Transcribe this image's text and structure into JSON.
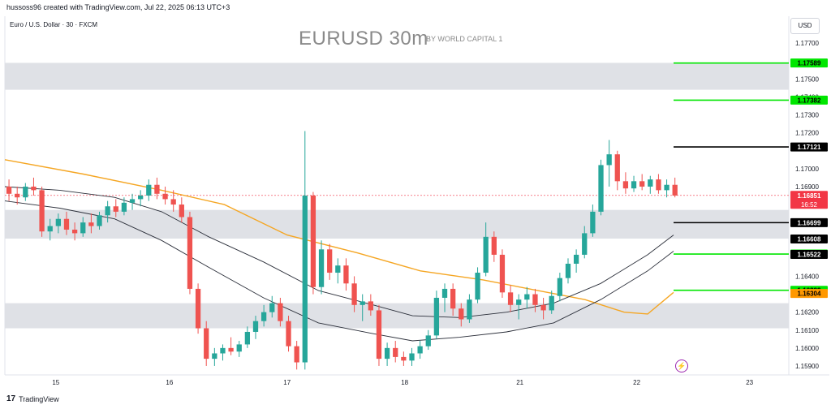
{
  "header": {
    "credit": "hussoss96 created with TradingView.com, Jul 22, 2025 06:13 UTC+3",
    "symbol": "Euro / U.S. Dollar · 30 · FXCM",
    "title": "EURUSD 30m",
    "subtitle": "BY WORLD CAPITAL 1",
    "currency": "USD"
  },
  "footer": {
    "brand": "TradingView",
    "logo": "17"
  },
  "icons": {
    "alert": "lightning-bolt-icon"
  },
  "chart_data": {
    "type": "candlestick",
    "y_axis": {
      "min": 1.1585,
      "max": 1.1785,
      "ticks": [
        "1.17700",
        "1.17500",
        "1.17400",
        "1.17300",
        "1.17200",
        "1.17000",
        "1.16900",
        "1.16400",
        "1.16200",
        "1.16100",
        "1.16000",
        "1.15900"
      ]
    },
    "x_axis": {
      "ticks": [
        {
          "label": "15",
          "pos": 0.065
        },
        {
          "label": "16",
          "pos": 0.21
        },
        {
          "label": "17",
          "pos": 0.36
        },
        {
          "label": "18",
          "pos": 0.51
        },
        {
          "label": "21",
          "pos": 0.657
        },
        {
          "label": "22",
          "pos": 0.806
        },
        {
          "label": "23",
          "pos": 0.95
        }
      ]
    },
    "price_labels": [
      {
        "value": "1.17589",
        "price": 1.17589,
        "color": "#00e600",
        "text_color": "#000000"
      },
      {
        "value": "1.17382",
        "price": 1.17382,
        "color": "#00e600",
        "text_color": "#000000"
      },
      {
        "value": "1.17121",
        "price": 1.17121,
        "color": "#000000",
        "text_color": "#ffffff"
      },
      {
        "value": "1.16851",
        "price": 1.16851,
        "color": "#f23645",
        "text_color": "#ffffff",
        "sub": "16:52"
      },
      {
        "value": "1.16699",
        "price": 1.16699,
        "color": "#000000",
        "text_color": "#ffffff"
      },
      {
        "value": "1.16608",
        "price": 1.16608,
        "color": "#000000",
        "text_color": "#ffffff"
      },
      {
        "value": "1.16524",
        "price": 1.16524,
        "color": "#00e600",
        "text_color": "#000000"
      },
      {
        "value": "1.16522",
        "price": 1.16522,
        "color": "#000000",
        "text_color": "#ffffff"
      },
      {
        "value": "1.16322",
        "price": 1.16322,
        "color": "#00e600",
        "text_color": "#000000"
      },
      {
        "value": "1.16304",
        "price": 1.16304,
        "color": "#ff9800",
        "text_color": "#000000"
      }
    ],
    "levels": [
      {
        "price": 1.17589,
        "color": "#00e600"
      },
      {
        "price": 1.17382,
        "color": "#00e600"
      },
      {
        "price": 1.17121,
        "color": "#000000"
      },
      {
        "price": 1.16699,
        "color": "#000000"
      },
      {
        "price": 1.16524,
        "color": "#00e600"
      },
      {
        "price": 1.16322,
        "color": "#00e600"
      }
    ],
    "zones": [
      {
        "from": 1.1744,
        "to": 1.1759
      },
      {
        "from": 1.1661,
        "to": 1.1677
      },
      {
        "from": 1.1611,
        "to": 1.1625
      }
    ],
    "current_price": 1.16851,
    "candles": [
      [
        1.169,
        1.1694,
        1.1682,
        1.1686
      ],
      [
        1.1686,
        1.169,
        1.168,
        1.1684
      ],
      [
        1.1684,
        1.1692,
        1.1682,
        1.169
      ],
      [
        1.169,
        1.1695,
        1.1685,
        1.1688
      ],
      [
        1.1688,
        1.169,
        1.1662,
        1.1665
      ],
      [
        1.1665,
        1.1672,
        1.166,
        1.1668
      ],
      [
        1.1668,
        1.1675,
        1.1664,
        1.1672
      ],
      [
        1.1672,
        1.1676,
        1.1663,
        1.1666
      ],
      [
        1.1666,
        1.167,
        1.166,
        1.1664
      ],
      [
        1.1664,
        1.1673,
        1.1662,
        1.167
      ],
      [
        1.167,
        1.1675,
        1.1664,
        1.1668
      ],
      [
        1.1668,
        1.1676,
        1.1666,
        1.1674
      ],
      [
        1.1674,
        1.1682,
        1.167,
        1.1679
      ],
      [
        1.1679,
        1.1683,
        1.1673,
        1.1676
      ],
      [
        1.1676,
        1.1684,
        1.1674,
        1.1681
      ],
      [
        1.1681,
        1.1686,
        1.1677,
        1.1683
      ],
      [
        1.1683,
        1.1688,
        1.1679,
        1.1685
      ],
      [
        1.1685,
        1.1694,
        1.1682,
        1.1691
      ],
      [
        1.1691,
        1.1695,
        1.1683,
        1.1686
      ],
      [
        1.1686,
        1.169,
        1.168,
        1.1683
      ],
      [
        1.1683,
        1.1688,
        1.1676,
        1.168
      ],
      [
        1.168,
        1.1684,
        1.167,
        1.1673
      ],
      [
        1.1673,
        1.1676,
        1.163,
        1.1633
      ],
      [
        1.1633,
        1.1636,
        1.1608,
        1.1611
      ],
      [
        1.1611,
        1.1615,
        1.159,
        1.1594
      ],
      [
        1.1594,
        1.16,
        1.159,
        1.1597
      ],
      [
        1.1597,
        1.1602,
        1.1593,
        1.16
      ],
      [
        1.16,
        1.1606,
        1.1596,
        1.1598
      ],
      [
        1.1598,
        1.1604,
        1.1595,
        1.1602
      ],
      [
        1.1602,
        1.1612,
        1.16,
        1.1609
      ],
      [
        1.1609,
        1.1618,
        1.1605,
        1.1615
      ],
      [
        1.1615,
        1.1624,
        1.1612,
        1.162
      ],
      [
        1.162,
        1.1629,
        1.1617,
        1.1625
      ],
      [
        1.1625,
        1.1628,
        1.1612,
        1.1615
      ],
      [
        1.1615,
        1.1618,
        1.1598,
        1.1601
      ],
      [
        1.1601,
        1.1604,
        1.1588,
        1.1592
      ],
      [
        1.1592,
        1.1721,
        1.1588,
        1.1685
      ],
      [
        1.1685,
        1.1687,
        1.163,
        1.1634
      ],
      [
        1.1634,
        1.166,
        1.163,
        1.1655
      ],
      [
        1.1655,
        1.1658,
        1.1638,
        1.1642
      ],
      [
        1.1642,
        1.165,
        1.1636,
        1.1646
      ],
      [
        1.1646,
        1.165,
        1.1632,
        1.1636
      ],
      [
        1.1636,
        1.164,
        1.162,
        1.1624
      ],
      [
        1.1624,
        1.163,
        1.1615,
        1.1626
      ],
      [
        1.1626,
        1.163,
        1.1618,
        1.1621
      ],
      [
        1.1621,
        1.1624,
        1.159,
        1.1594
      ],
      [
        1.1594,
        1.1603,
        1.159,
        1.16
      ],
      [
        1.16,
        1.1604,
        1.1592,
        1.1595
      ],
      [
        1.1595,
        1.1598,
        1.159,
        1.1593
      ],
      [
        1.1593,
        1.16,
        1.159,
        1.1597
      ],
      [
        1.1597,
        1.1604,
        1.1594,
        1.1601
      ],
      [
        1.1601,
        1.161,
        1.1599,
        1.1607
      ],
      [
        1.1607,
        1.1632,
        1.1605,
        1.1628
      ],
      [
        1.1628,
        1.1636,
        1.162,
        1.1633
      ],
      [
        1.1633,
        1.1636,
        1.1618,
        1.1622
      ],
      [
        1.1622,
        1.1625,
        1.1612,
        1.1616
      ],
      [
        1.1616,
        1.163,
        1.1614,
        1.1627
      ],
      [
        1.1627,
        1.1645,
        1.1625,
        1.1642
      ],
      [
        1.1642,
        1.167,
        1.164,
        1.1662
      ],
      [
        1.1662,
        1.1665,
        1.1648,
        1.1652
      ],
      [
        1.1652,
        1.1655,
        1.1628,
        1.1631
      ],
      [
        1.1631,
        1.1635,
        1.162,
        1.1624
      ],
      [
        1.1624,
        1.163,
        1.1616,
        1.1627
      ],
      [
        1.1627,
        1.1634,
        1.1622,
        1.163
      ],
      [
        1.163,
        1.1633,
        1.162,
        1.1624
      ],
      [
        1.1624,
        1.1628,
        1.1616,
        1.1621
      ],
      [
        1.1621,
        1.1632,
        1.1619,
        1.1629
      ],
      [
        1.1629,
        1.1642,
        1.1626,
        1.1639
      ],
      [
        1.1639,
        1.165,
        1.1636,
        1.1647
      ],
      [
        1.1647,
        1.1655,
        1.1642,
        1.1652
      ],
      [
        1.1652,
        1.1668,
        1.165,
        1.1664
      ],
      [
        1.1664,
        1.168,
        1.1662,
        1.1676
      ],
      [
        1.1676,
        1.1705,
        1.1674,
        1.1702
      ],
      [
        1.1702,
        1.1716,
        1.169,
        1.1708
      ],
      [
        1.1708,
        1.171,
        1.1688,
        1.1693
      ],
      [
        1.1693,
        1.1698,
        1.1686,
        1.1689
      ],
      [
        1.1689,
        1.1696,
        1.1687,
        1.1693
      ],
      [
        1.1693,
        1.1697,
        1.1688,
        1.169
      ],
      [
        1.169,
        1.1696,
        1.1686,
        1.1694
      ],
      [
        1.1694,
        1.1697,
        1.1686,
        1.1688
      ],
      [
        1.1688,
        1.1694,
        1.1684,
        1.1691
      ],
      [
        1.1691,
        1.1695,
        1.1684,
        1.1685
      ]
    ],
    "ema_orange": [
      [
        0.0,
        1.1705
      ],
      [
        0.1,
        1.1697
      ],
      [
        0.2,
        1.1688
      ],
      [
        0.28,
        1.168
      ],
      [
        0.36,
        1.1663
      ],
      [
        0.45,
        1.1653
      ],
      [
        0.53,
        1.1643
      ],
      [
        0.61,
        1.1638
      ],
      [
        0.68,
        1.1632
      ],
      [
        0.74,
        1.1627
      ],
      [
        0.79,
        1.162
      ],
      [
        0.82,
        1.1619
      ],
      [
        0.853,
        1.1631
      ]
    ],
    "band_upper": [
      [
        0.0,
        1.169
      ],
      [
        0.07,
        1.1688
      ],
      [
        0.14,
        1.1684
      ],
      [
        0.2,
        1.1676
      ],
      [
        0.26,
        1.1662
      ],
      [
        0.33,
        1.1648
      ],
      [
        0.4,
        1.1632
      ],
      [
        0.47,
        1.1624
      ],
      [
        0.52,
        1.1618
      ],
      [
        0.58,
        1.1617
      ],
      [
        0.64,
        1.162
      ],
      [
        0.7,
        1.1625
      ],
      [
        0.76,
        1.1636
      ],
      [
        0.82,
        1.1652
      ],
      [
        0.853,
        1.1663
      ]
    ],
    "band_lower": [
      [
        0.0,
        1.1682
      ],
      [
        0.07,
        1.1678
      ],
      [
        0.14,
        1.1672
      ],
      [
        0.2,
        1.166
      ],
      [
        0.26,
        1.1645
      ],
      [
        0.33,
        1.1628
      ],
      [
        0.4,
        1.1614
      ],
      [
        0.47,
        1.1608
      ],
      [
        0.52,
        1.1604
      ],
      [
        0.58,
        1.1606
      ],
      [
        0.64,
        1.1609
      ],
      [
        0.7,
        1.1614
      ],
      [
        0.76,
        1.1627
      ],
      [
        0.82,
        1.1643
      ],
      [
        0.853,
        1.1654
      ]
    ]
  }
}
